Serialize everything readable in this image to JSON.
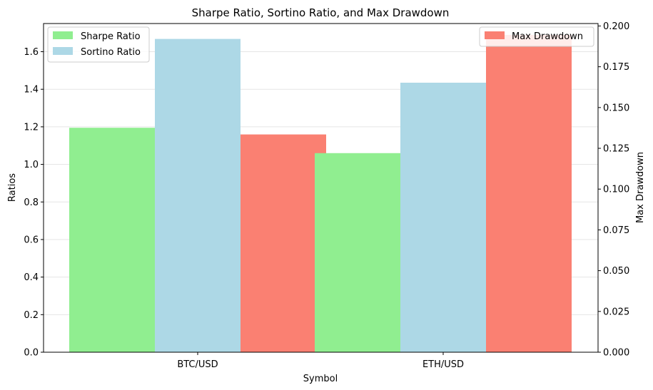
{
  "chart_data": {
    "type": "bar",
    "title": "Sharpe Ratio, Sortino Ratio, and Max Drawdown",
    "xlabel": "Symbol",
    "ylabel": "Ratios",
    "y2label": "Max Drawdown",
    "categories": [
      "BTC/USD",
      "ETH/USD"
    ],
    "ylim": [
      0,
      1.75
    ],
    "y2lim": [
      0,
      0.2015
    ],
    "yticks": [
      "0.0",
      "0.2",
      "0.4",
      "0.6",
      "0.8",
      "1.0",
      "1.2",
      "1.4",
      "1.6"
    ],
    "y2ticks": [
      "0.000",
      "0.025",
      "0.050",
      "0.075",
      "0.100",
      "0.125",
      "0.150",
      "0.175",
      "0.200"
    ],
    "grid": true,
    "series": [
      {
        "name": "Sharpe Ratio",
        "axis": "left",
        "color": "#90ee90",
        "values": [
          1.195,
          1.06
        ]
      },
      {
        "name": "Sortino Ratio",
        "axis": "left",
        "color": "#add8e6",
        "values": [
          1.668,
          1.435
        ]
      },
      {
        "name": "Max Drawdown",
        "axis": "right",
        "color": "#fa8072",
        "values": [
          0.1335,
          0.1945
        ]
      }
    ],
    "legend_left": "top-left",
    "legend_right": "top-right"
  }
}
